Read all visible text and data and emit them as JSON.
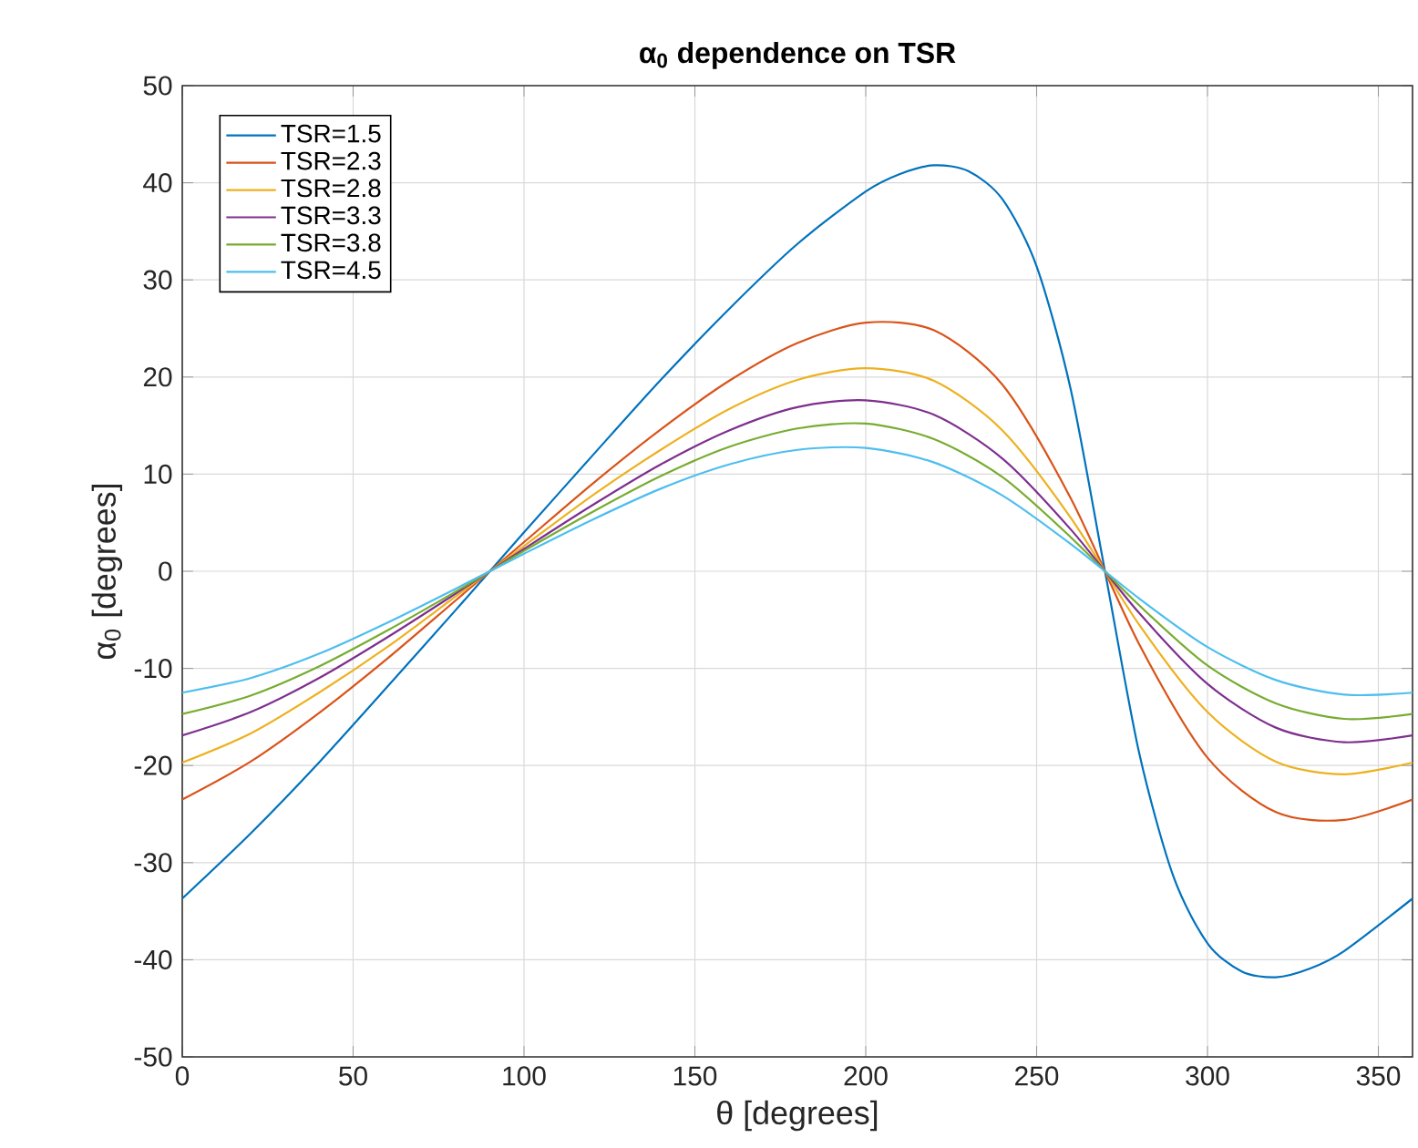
{
  "chart_data": {
    "type": "line",
    "title": "**α$_{0}$ dependence on TSR**",
    "xlabel": "θ [degrees]",
    "ylabel": "α$_{0}$ [degrees]",
    "x": [
      0,
      20,
      40,
      60,
      80,
      100,
      120,
      140,
      160,
      180,
      200,
      220,
      240,
      260,
      280,
      300,
      320,
      340,
      360
    ],
    "series": [
      {
        "name": "TSR=1.5",
        "color": "#0072bd",
        "x": [
          0,
          20,
          40,
          60,
          80,
          100,
          120,
          140,
          160,
          180,
          200,
          210,
          220,
          230,
          240,
          250,
          260,
          270,
          280,
          290,
          300,
          310,
          320,
          330,
          340,
          360
        ],
        "values": [
          -33.7,
          -27.0,
          -19.7,
          -11.9,
          -4.0,
          4.0,
          11.9,
          19.7,
          27.0,
          33.7,
          39.1,
          40.9,
          41.8,
          41.2,
          38.3,
          31.4,
          18.7,
          0,
          -18.7,
          -31.4,
          -38.3,
          -41.2,
          -41.8,
          -40.9,
          -39.1,
          -33.7
        ]
      },
      {
        "name": "TSR=2.3",
        "color": "#d95319",
        "values": [
          -23.5,
          -19.6,
          -14.6,
          -9.0,
          -3.0,
          3.0,
          9.0,
          14.6,
          19.6,
          23.5,
          25.6,
          24.8,
          19.2,
          7.5,
          -7.5,
          -19.2,
          -24.8,
          -25.6,
          -23.5
        ]
      },
      {
        "name": "TSR=2.8",
        "color": "#edb120",
        "values": [
          -19.7,
          -16.7,
          -12.5,
          -7.8,
          -2.6,
          2.6,
          7.8,
          12.5,
          16.7,
          19.7,
          20.9,
          19.6,
          14.5,
          5.5,
          -5.5,
          -14.5,
          -19.6,
          -20.9,
          -19.7
        ]
      },
      {
        "name": "TSR=3.3",
        "color": "#7e2f8e",
        "values": [
          -16.9,
          -14.5,
          -11.0,
          -6.8,
          -2.3,
          2.3,
          6.8,
          11.0,
          14.5,
          16.9,
          17.6,
          16.1,
          11.6,
          4.3,
          -4.3,
          -11.6,
          -16.1,
          -17.6,
          -16.9
        ]
      },
      {
        "name": "TSR=3.8",
        "color": "#77ac30",
        "values": [
          -14.7,
          -12.8,
          -9.8,
          -6.1,
          -2.1,
          2.1,
          6.1,
          9.8,
          12.8,
          14.7,
          15.2,
          13.6,
          9.7,
          3.5,
          -3.5,
          -9.7,
          -13.6,
          -15.2,
          -14.7
        ]
      },
      {
        "name": "TSR=4.5",
        "color": "#4dbeee",
        "values": [
          -12.5,
          -11.0,
          -8.5,
          -5.3,
          -1.8,
          1.8,
          5.3,
          8.5,
          11.0,
          12.5,
          12.7,
          11.2,
          7.8,
          2.8,
          -2.8,
          -7.8,
          -11.2,
          -12.7,
          -12.5
        ]
      }
    ],
    "xlim": [
      0,
      360
    ],
    "xticks": [
      0,
      50,
      100,
      150,
      200,
      250,
      300,
      350
    ],
    "ylim": [
      -50,
      50
    ],
    "yticks": [
      -50,
      -40,
      -30,
      -20,
      -10,
      0,
      10,
      20,
      30,
      40,
      50
    ],
    "grid": true,
    "legend": "top left",
    "marker": "none",
    "line_style": "solid"
  }
}
